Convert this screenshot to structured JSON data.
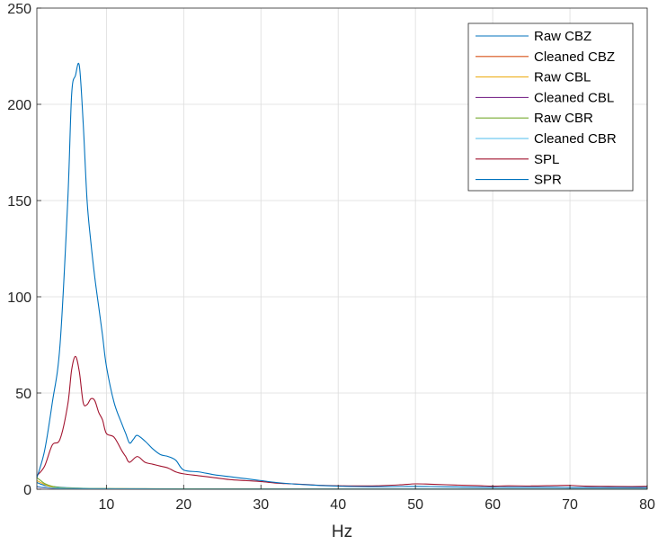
{
  "chart_data": {
    "type": "line",
    "title": "",
    "xlabel": "Hz",
    "ylabel": "",
    "xlim": [
      1,
      80
    ],
    "ylim": [
      0,
      250
    ],
    "x_ticks": [
      10,
      20,
      30,
      40,
      50,
      60,
      70,
      80
    ],
    "y_ticks": [
      0,
      50,
      100,
      150,
      200,
      250
    ],
    "x_tick_labels": [
      "10",
      "20",
      "30",
      "40",
      "50",
      "60",
      "70",
      "80"
    ],
    "y_tick_labels": [
      "0",
      "50",
      "100",
      "150",
      "200",
      "250"
    ],
    "grid": true,
    "legend_position": "top-right",
    "series": [
      {
        "name": "Raw CBZ",
        "color": "#0072BD",
        "x": [
          1,
          2,
          4,
          6,
          10,
          15,
          20,
          30,
          40,
          50,
          60,
          70,
          80
        ],
        "y": [
          3.5,
          2.0,
          1.0,
          0.6,
          0.3,
          0.25,
          0.2,
          0.15,
          0.12,
          0.1,
          0.1,
          0.1,
          0.1
        ]
      },
      {
        "name": "Cleaned CBZ",
        "color": "#D95319",
        "x": [
          1,
          2,
          4,
          6,
          10,
          20,
          40,
          60,
          80
        ],
        "y": [
          1.5,
          1.0,
          0.5,
          0.3,
          0.2,
          0.1,
          0.1,
          0.1,
          0.1
        ]
      },
      {
        "name": "Raw CBL",
        "color": "#EDB120",
        "x": [
          1,
          2,
          3,
          5,
          8,
          12,
          20,
          40,
          60,
          80
        ],
        "y": [
          4.5,
          2.5,
          1.2,
          0.6,
          0.4,
          0.3,
          0.2,
          0.15,
          0.1,
          0.1
        ]
      },
      {
        "name": "Cleaned CBL",
        "color": "#7E2F8E",
        "x": [
          1,
          2,
          4,
          8,
          20,
          40,
          80
        ],
        "y": [
          1.2,
          0.8,
          0.4,
          0.2,
          0.1,
          0.1,
          0.1
        ]
      },
      {
        "name": "Raw CBR",
        "color": "#77AC30",
        "x": [
          1,
          1.5,
          2,
          3,
          4,
          6,
          10,
          20,
          40,
          80
        ],
        "y": [
          6.0,
          4.5,
          3.0,
          1.5,
          0.8,
          0.5,
          0.3,
          0.2,
          0.1,
          0.1
        ]
      },
      {
        "name": "Cleaned CBR",
        "color": "#4DBEEE",
        "x": [
          1,
          2,
          4,
          8,
          20,
          40,
          80
        ],
        "y": [
          1.5,
          1.0,
          0.5,
          0.3,
          0.1,
          0.1,
          0.1
        ]
      },
      {
        "name": "SPL",
        "color": "#A2142F",
        "x": [
          1,
          2,
          3,
          4,
          5,
          5.5,
          6,
          6.5,
          7,
          7.5,
          8,
          8.5,
          9,
          9.5,
          10,
          11,
          12,
          12.5,
          13,
          14,
          15,
          16,
          17,
          18,
          19,
          20,
          22,
          24,
          26,
          28,
          30,
          32,
          34,
          36,
          38,
          40,
          42,
          45,
          48,
          50,
          52,
          55,
          58,
          60,
          62,
          65,
          68,
          70,
          72,
          75,
          78,
          80
        ],
        "y": [
          7,
          12,
          23,
          26,
          44,
          62,
          69,
          61,
          45,
          44,
          47,
          46,
          40,
          36,
          29,
          27,
          20,
          17,
          14,
          17,
          14,
          13,
          12,
          11,
          9,
          8,
          7,
          6,
          5,
          4.5,
          4,
          3.2,
          2.8,
          2.4,
          2.0,
          1.8,
          1.7,
          1.8,
          2.3,
          2.8,
          2.6,
          2.2,
          1.9,
          1.6,
          1.8,
          1.7,
          1.9,
          2.0,
          1.6,
          1.5,
          1.4,
          1.5
        ]
      },
      {
        "name": "SPR",
        "color": "#0072BD",
        "x": [
          1,
          2,
          3,
          4,
          5,
          5.5,
          6,
          6.5,
          7,
          7.5,
          8,
          8.5,
          9,
          9.5,
          10,
          11,
          12,
          12.5,
          13,
          13.5,
          14,
          15,
          16,
          17,
          18,
          19,
          20,
          22,
          24,
          26,
          28,
          30,
          32,
          34,
          36,
          38,
          40,
          42,
          45,
          48,
          50,
          52,
          55,
          58,
          60,
          62,
          65,
          68,
          70,
          72,
          75,
          78,
          80
        ],
        "y": [
          6,
          20,
          45,
          75,
          150,
          205,
          215,
          220,
          190,
          150,
          128,
          110,
          95,
          80,
          64,
          45,
          34,
          29,
          24,
          26,
          28,
          25,
          21,
          18,
          17,
          15,
          10,
          9,
          7.5,
          6.5,
          5.5,
          4.5,
          3.5,
          2.8,
          2.3,
          1.9,
          1.6,
          1.4,
          1.3,
          1.4,
          1.5,
          1.4,
          1.2,
          1.1,
          1.0,
          1.0,
          1.0,
          1.0,
          0.9,
          0.9,
          0.9,
          0.9,
          0.9
        ]
      }
    ]
  }
}
